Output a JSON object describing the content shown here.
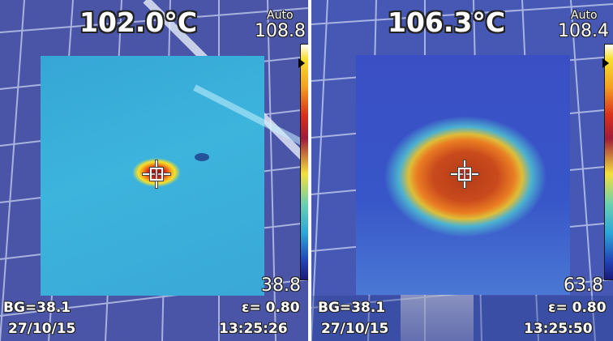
{
  "colors": {
    "grid_background": "#4a55a8",
    "grid_lines": "#c8d2f0",
    "text": "#ffffff",
    "text_outline": "#222222",
    "hotspot": "#c8221a"
  },
  "panels": [
    {
      "spot_temperature": "102.0°C",
      "range_mode": "Auto",
      "scale_max": "108.8",
      "scale_min": "38.8",
      "background_temperature": "BG=38.1",
      "emissivity": "ε= 0.80",
      "date": "27/10/15",
      "time": "13:25:26"
    },
    {
      "spot_temperature": "106.3°C",
      "range_mode": "Auto",
      "scale_max": "108.4",
      "scale_min": "63.8",
      "background_temperature": "BG=38.1",
      "emissivity": "ε= 0.80",
      "date": "27/10/15",
      "time": "13:25:50"
    }
  ]
}
